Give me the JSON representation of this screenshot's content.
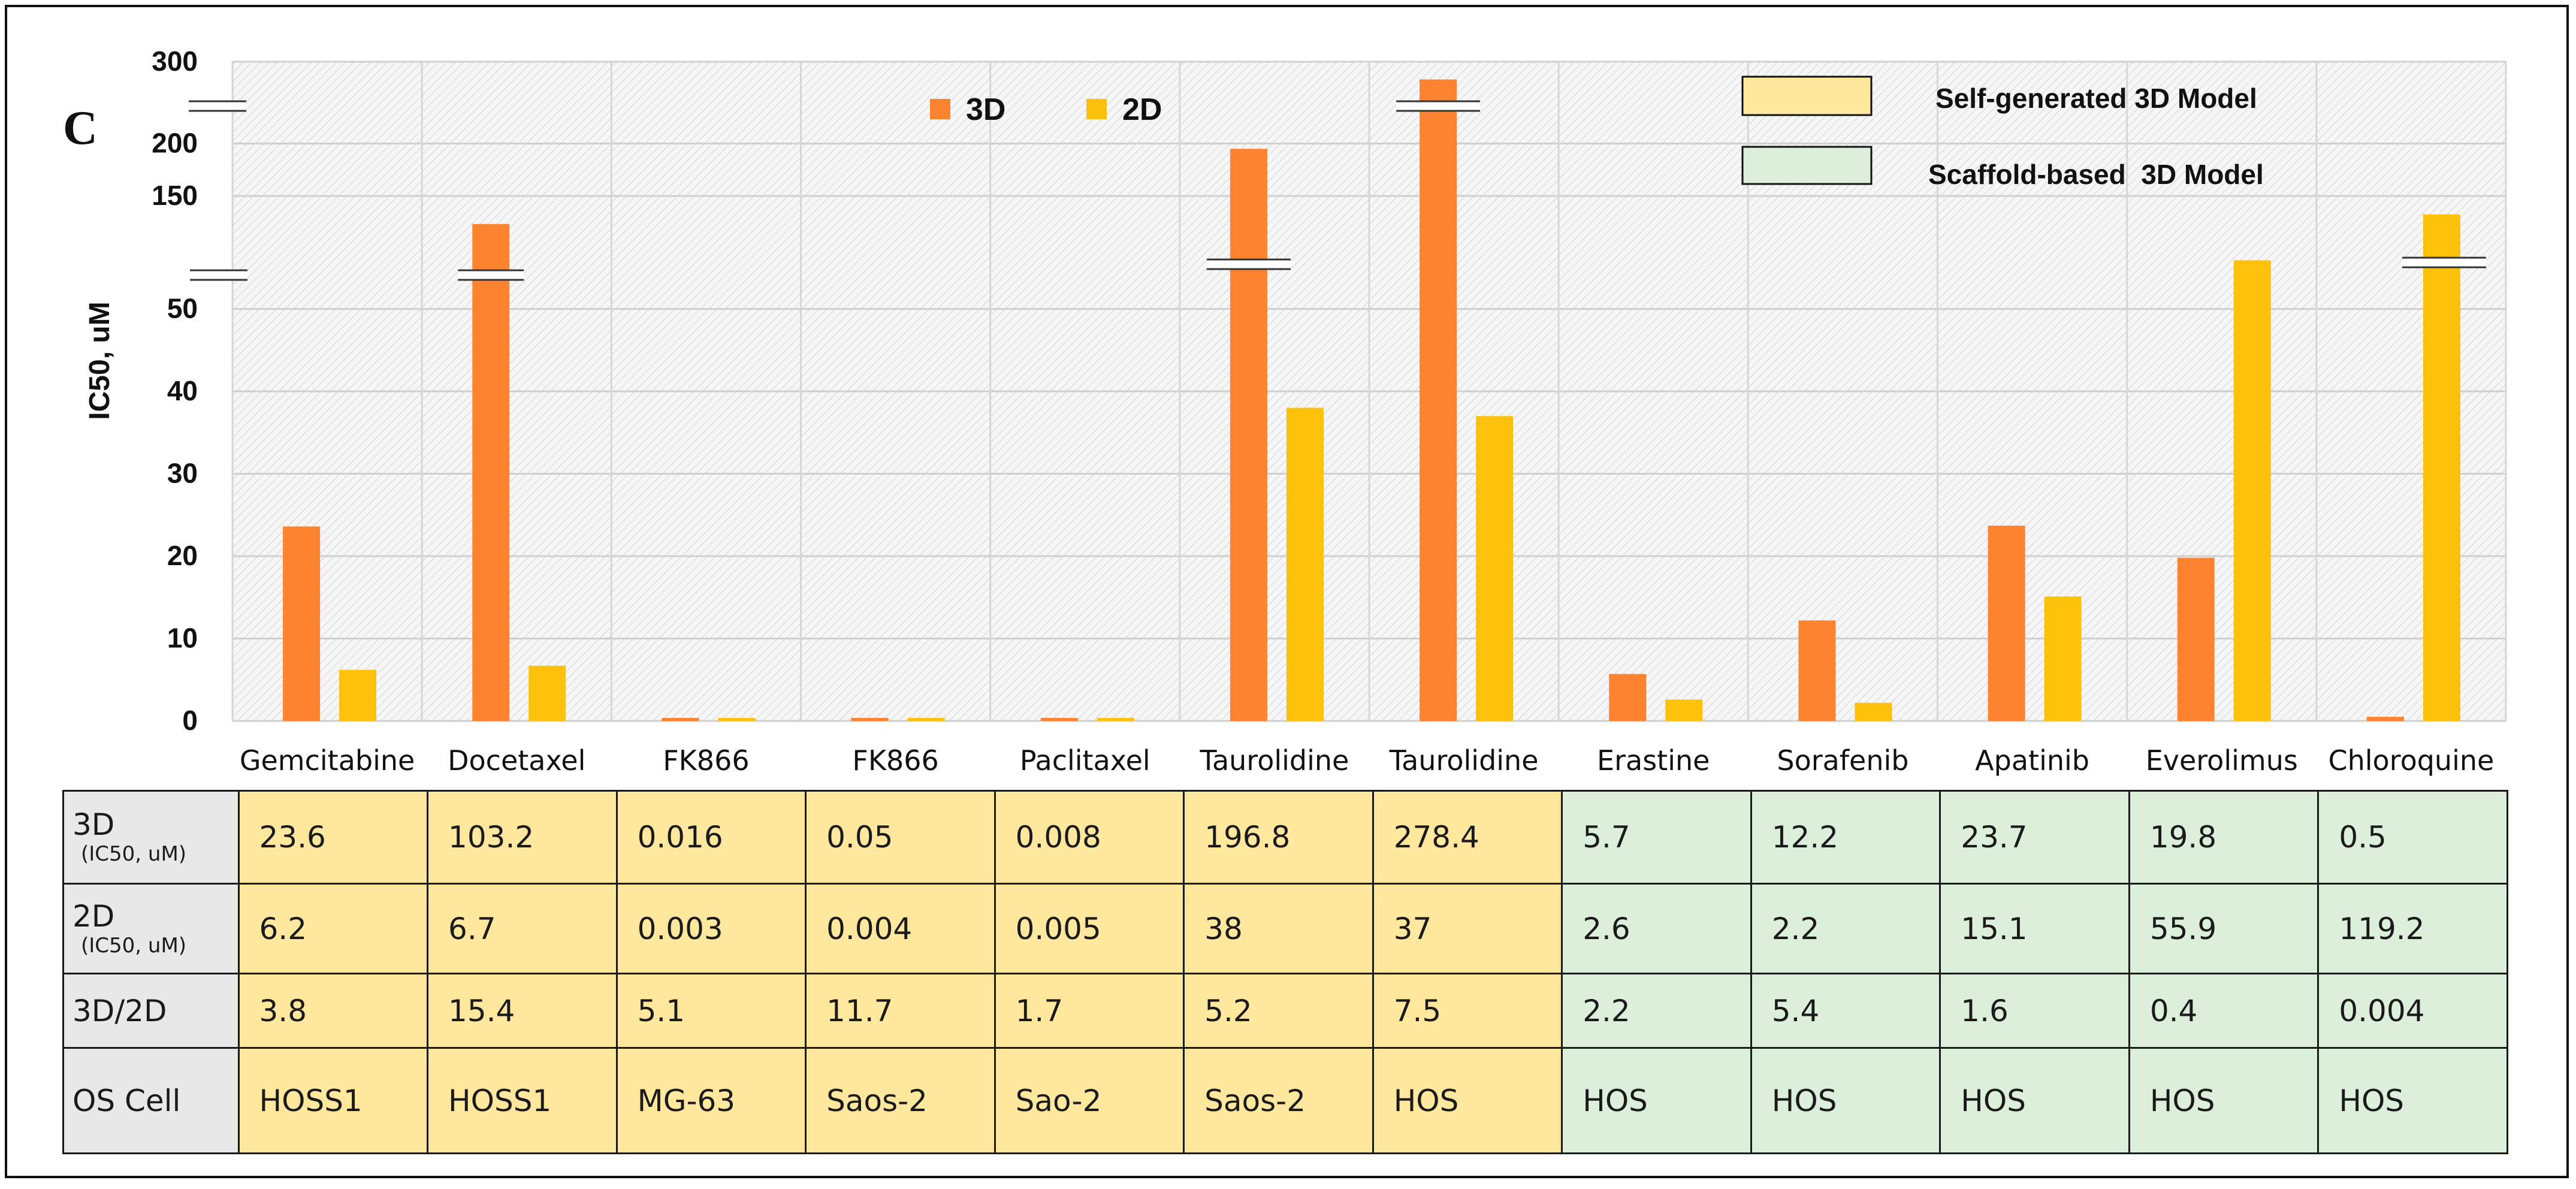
{
  "panel_label": "C",
  "chart_data": {
    "type": "bar",
    "title": "",
    "ylabel": "IC50, uM",
    "xlabel": "",
    "categories": [
      "Gemcitabine",
      "Docetaxel",
      "FK866",
      "FK866",
      "Paclitaxel",
      "Taurolidine",
      "Taurolidine",
      "Erastine",
      "Sorafenib",
      "Apatinib",
      "Everolimus",
      "Chloroquine"
    ],
    "series": [
      {
        "name": "3D",
        "color": "#fd8330",
        "values": [
          23.6,
          103.2,
          0.016,
          0.05,
          0.008,
          196.8,
          278.4,
          5.7,
          12.2,
          23.7,
          19.8,
          0.5
        ]
      },
      {
        "name": "2D",
        "color": "#fdc10b",
        "values": [
          6.2,
          6.7,
          0.003,
          0.004,
          0.005,
          38,
          37,
          2.6,
          2.2,
          15.1,
          55.9,
          119.2
        ]
      }
    ],
    "y_axis": {
      "type": "broken",
      "lower_ticks": [
        0,
        10,
        20,
        30,
        40,
        50
      ],
      "upper_ticks": [
        150,
        200,
        300
      ],
      "tick_labels": [
        "0",
        "10",
        "20",
        "30",
        "40",
        "50",
        "150",
        "200",
        "300"
      ],
      "lower_range": [
        0,
        60
      ],
      "upper_range": [
        100,
        300
      ]
    },
    "grid": true,
    "legend_position": "top-center",
    "model_legend": [
      {
        "label": "Self-generated 3D Model",
        "color": "#ffe79e"
      },
      {
        "label": "Scaffold-based  3D Model",
        "color": "#dcefda"
      }
    ]
  },
  "table": {
    "row_headers": [
      {
        "main": "3D",
        "sub": "(IC50, uM)"
      },
      {
        "main": "2D",
        "sub": "(IC50, uM)"
      },
      {
        "main": "3D/2D",
        "sub": ""
      },
      {
        "main": "OS Cell",
        "sub": ""
      }
    ],
    "rows": [
      [
        "23.6",
        "103.2",
        "0.016",
        "0.05",
        "0.008",
        "196.8",
        "278.4",
        "5.7",
        "12.2",
        "23.7",
        "19.8",
        "0.5"
      ],
      [
        "6.2",
        "6.7",
        "0.003",
        "0.004",
        "0.005",
        "38",
        "37",
        "2.6",
        "2.2",
        "15.1",
        "55.9",
        "119.2"
      ],
      [
        "3.8",
        "15.4",
        "5.1",
        "11.7",
        "1.7",
        "5.2",
        "7.5",
        "2.2",
        "5.4",
        "1.6",
        "0.4",
        "0.004"
      ],
      [
        "HOSS1",
        "HOSS1",
        "MG-63",
        "Saos-2",
        "Sao-2",
        "Saos-2",
        "HOS",
        "HOS",
        "HOS",
        "HOS",
        "HOS",
        "HOS"
      ]
    ],
    "column_groups": [
      "yellow",
      "yellow",
      "yellow",
      "yellow",
      "yellow",
      "yellow",
      "yellow",
      "green",
      "green",
      "green",
      "green",
      "green"
    ]
  }
}
